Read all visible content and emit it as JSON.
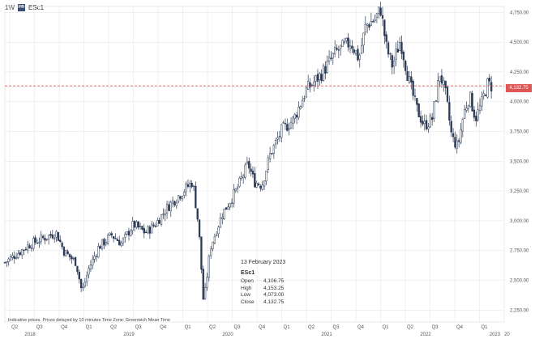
{
  "header": {
    "interval": "1W",
    "badge": "FR",
    "symbol": "ESc1"
  },
  "current_price": {
    "label": "4,132.75",
    "value": 4132.75,
    "color": "#e05555"
  },
  "disclaimer": "Indicative prices. Prices delayed by 10 minutes    Time Zone: Greenwich Mean Time",
  "tooltip": {
    "date": "13 February 2023",
    "symbol": "ESc1",
    "rows": [
      {
        "label": "Open",
        "value": "4,106.75"
      },
      {
        "label": "High",
        "value": "4,153.25"
      },
      {
        "label": "Low",
        "value": "4,073.00"
      },
      {
        "label": "Close",
        "value": "4,132.75"
      }
    ]
  },
  "chart_data": {
    "type": "candlestick",
    "title": "",
    "xlabel": "",
    "ylabel": "",
    "ylim": [
      2150,
      4800
    ],
    "y_ticks": [
      2250,
      2500,
      2750,
      3000,
      3250,
      3500,
      3750,
      4000,
      4250,
      4500,
      4750
    ],
    "y_tick_labels": [
      "2,250.00",
      "2,500.00",
      "2,750.00",
      "3,000.00",
      "3,250.00",
      "3,500.00",
      "3,750.00",
      "4,000.00",
      "4,250.00",
      "4,500.00",
      "4,750.00"
    ],
    "x_start": 2018.2,
    "x_end": 2023.25,
    "quarter_ticks": [
      {
        "label": "Q2",
        "x": 2018.25
      },
      {
        "label": "Q3",
        "x": 2018.5
      },
      {
        "label": "Q4",
        "x": 2018.75
      },
      {
        "label": "Q1",
        "x": 2019.0
      },
      {
        "label": "Q2",
        "x": 2019.25
      },
      {
        "label": "Q3",
        "x": 2019.5
      },
      {
        "label": "Q4",
        "x": 2019.75
      },
      {
        "label": "Q1",
        "x": 2020.0
      },
      {
        "label": "Q2",
        "x": 2020.25
      },
      {
        "label": "Q3",
        "x": 2020.5
      },
      {
        "label": "Q4",
        "x": 2020.75
      },
      {
        "label": "Q1",
        "x": 2021.0
      },
      {
        "label": "Q2",
        "x": 2021.25
      },
      {
        "label": "Q3",
        "x": 2021.5
      },
      {
        "label": "Q4",
        "x": 2021.75
      },
      {
        "label": "Q1",
        "x": 2022.0
      },
      {
        "label": "Q2",
        "x": 2022.25
      },
      {
        "label": "Q3",
        "x": 2022.5
      },
      {
        "label": "Q4",
        "x": 2022.75
      },
      {
        "label": "Q1",
        "x": 2023.0
      }
    ],
    "year_ticks": [
      {
        "label": "2018",
        "x": 2018.4
      },
      {
        "label": "2019",
        "x": 2019.4
      },
      {
        "label": "2020",
        "x": 2020.4
      },
      {
        "label": "2021",
        "x": 2021.4
      },
      {
        "label": "2022",
        "x": 2022.4
      },
      {
        "label": "2023",
        "x": 2023.1
      },
      {
        "label": "20",
        "x": 2023.25
      }
    ],
    "close_path": [
      {
        "x": 2018.2,
        "y": 2650
      },
      {
        "x": 2018.3,
        "y": 2710
      },
      {
        "x": 2018.45,
        "y": 2800
      },
      {
        "x": 2018.55,
        "y": 2840
      },
      {
        "x": 2018.72,
        "y": 2900
      },
      {
        "x": 2018.8,
        "y": 2740
      },
      {
        "x": 2018.92,
        "y": 2650
      },
      {
        "x": 2018.98,
        "y": 2400
      },
      {
        "x": 2019.05,
        "y": 2600
      },
      {
        "x": 2019.15,
        "y": 2780
      },
      {
        "x": 2019.28,
        "y": 2880
      },
      {
        "x": 2019.38,
        "y": 2810
      },
      {
        "x": 2019.5,
        "y": 2970
      },
      {
        "x": 2019.62,
        "y": 2900
      },
      {
        "x": 2019.72,
        "y": 2970
      },
      {
        "x": 2019.85,
        "y": 3120
      },
      {
        "x": 2019.98,
        "y": 3230
      },
      {
        "x": 2020.1,
        "y": 3330
      },
      {
        "x": 2020.16,
        "y": 2950
      },
      {
        "x": 2020.21,
        "y": 2300
      },
      {
        "x": 2020.28,
        "y": 2780
      },
      {
        "x": 2020.4,
        "y": 3060
      },
      {
        "x": 2020.55,
        "y": 3270
      },
      {
        "x": 2020.66,
        "y": 3480
      },
      {
        "x": 2020.72,
        "y": 3330
      },
      {
        "x": 2020.8,
        "y": 3300
      },
      {
        "x": 2020.88,
        "y": 3550
      },
      {
        "x": 2021.0,
        "y": 3760
      },
      {
        "x": 2021.12,
        "y": 3850
      },
      {
        "x": 2021.25,
        "y": 4100
      },
      {
        "x": 2021.4,
        "y": 4230
      },
      {
        "x": 2021.55,
        "y": 4420
      },
      {
        "x": 2021.7,
        "y": 4500
      },
      {
        "x": 2021.78,
        "y": 4360
      },
      {
        "x": 2021.85,
        "y": 4640
      },
      {
        "x": 2021.95,
        "y": 4700
      },
      {
        "x": 2022.0,
        "y": 4780
      },
      {
        "x": 2022.06,
        "y": 4450
      },
      {
        "x": 2022.12,
        "y": 4300
      },
      {
        "x": 2022.2,
        "y": 4520
      },
      {
        "x": 2022.28,
        "y": 4200
      },
      {
        "x": 2022.36,
        "y": 3950
      },
      {
        "x": 2022.44,
        "y": 3800
      },
      {
        "x": 2022.52,
        "y": 3850
      },
      {
        "x": 2022.6,
        "y": 4240
      },
      {
        "x": 2022.66,
        "y": 4050
      },
      {
        "x": 2022.72,
        "y": 3700
      },
      {
        "x": 2022.78,
        "y": 3620
      },
      {
        "x": 2022.84,
        "y": 3900
      },
      {
        "x": 2022.9,
        "y": 4050
      },
      {
        "x": 2022.96,
        "y": 3860
      },
      {
        "x": 2023.02,
        "y": 3980
      },
      {
        "x": 2023.08,
        "y": 4150
      },
      {
        "x": 2023.12,
        "y": 4132.75
      }
    ],
    "candle_count": 256,
    "grid": true,
    "up_color": "#2b3a55",
    "down_color": "#2b3a55",
    "reference_line": {
      "value": 4132.75,
      "style": "dashed",
      "color": "#e05555"
    }
  }
}
